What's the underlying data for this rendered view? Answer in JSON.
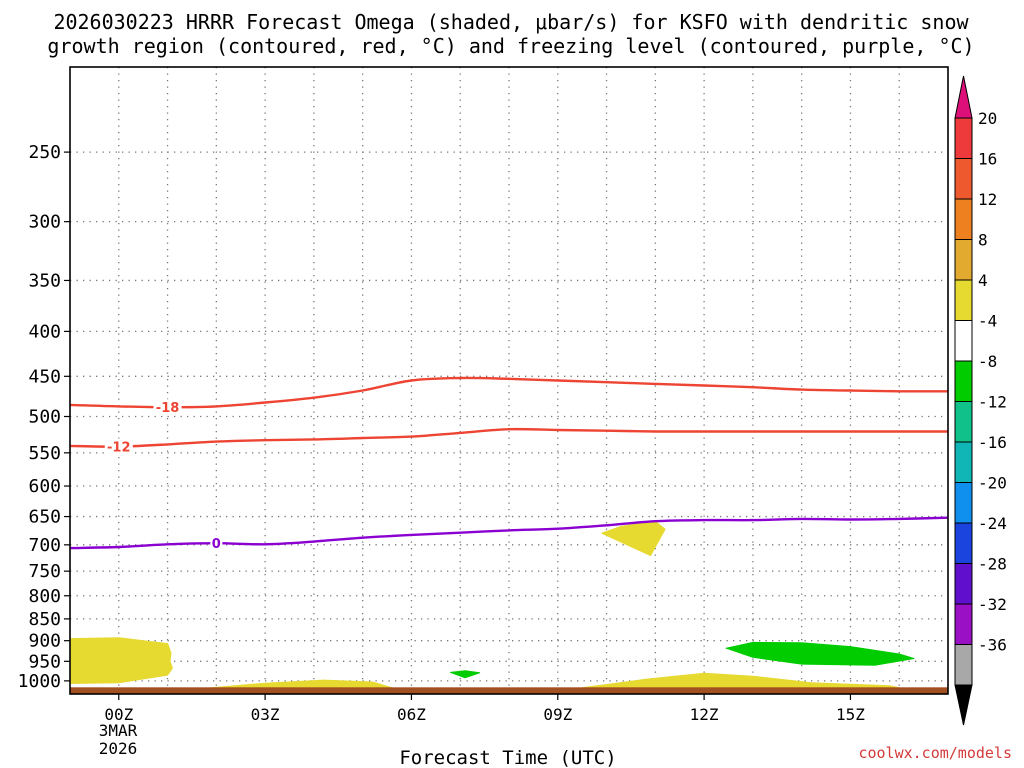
{
  "chart_data": {
    "type": "time-height-contour",
    "title_line1": "2026030223 HRRR Forecast Omega (shaded, μbar/s) for KSFO with dendritic snow",
    "title_line2": "growth region (contoured, red, °C) and freezing level (contoured, purple, °C)",
    "xlabel": "Forecast Time (UTC)",
    "watermark": "coolwx.com/models",
    "x_ticks": [
      {
        "hour": 0,
        "label": "00Z"
      },
      {
        "hour": 3,
        "label": "03Z"
      },
      {
        "hour": 6,
        "label": "06Z"
      },
      {
        "hour": 9,
        "label": "09Z"
      },
      {
        "hour": 12,
        "label": "12Z"
      },
      {
        "hour": 15,
        "label": "15Z"
      }
    ],
    "date_label": [
      "3MAR",
      "2026"
    ],
    "xlim": [
      -1,
      17
    ],
    "y_levels": [
      250,
      300,
      350,
      400,
      450,
      500,
      550,
      600,
      650,
      700,
      750,
      800,
      850,
      900,
      950,
      1000
    ],
    "ylim_hPa": [
      200,
      1035
    ],
    "contours": [
      {
        "name": "-18C dendritic",
        "color": "#ee4433",
        "label": "-18",
        "label_at": [
          1.0,
          488
        ],
        "points": [
          [
            -1,
            485
          ],
          [
            0,
            487
          ],
          [
            1,
            488
          ],
          [
            2,
            487
          ],
          [
            3,
            482
          ],
          [
            4,
            476
          ],
          [
            5,
            467
          ],
          [
            6,
            455
          ],
          [
            7,
            452
          ],
          [
            8,
            453
          ],
          [
            9,
            455
          ],
          [
            10,
            457
          ],
          [
            11,
            459
          ],
          [
            12,
            461
          ],
          [
            13,
            463
          ],
          [
            14,
            466
          ],
          [
            15,
            467
          ],
          [
            16,
            468
          ],
          [
            17,
            468
          ]
        ]
      },
      {
        "name": "-12C dendritic",
        "color": "#ee4433",
        "label": "-12",
        "label_at": [
          0.0,
          541
        ],
        "points": [
          [
            -1,
            540
          ],
          [
            0,
            541
          ],
          [
            1,
            538
          ],
          [
            2,
            534
          ],
          [
            3,
            532
          ],
          [
            4,
            531
          ],
          [
            5,
            529
          ],
          [
            6,
            527
          ],
          [
            7,
            522
          ],
          [
            8,
            517
          ],
          [
            9,
            518
          ],
          [
            10,
            519
          ],
          [
            11,
            520
          ],
          [
            12,
            520
          ],
          [
            13,
            520
          ],
          [
            14,
            520
          ],
          [
            15,
            520
          ],
          [
            16,
            520
          ],
          [
            17,
            520
          ]
        ]
      },
      {
        "name": "0C freezing level",
        "color": "#8a00d0",
        "label": "0",
        "label_at": [
          2.0,
          697
        ],
        "points": [
          [
            -1,
            706
          ],
          [
            0,
            704
          ],
          [
            1,
            699
          ],
          [
            2,
            697
          ],
          [
            3,
            699
          ],
          [
            4,
            694
          ],
          [
            5,
            687
          ],
          [
            6,
            682
          ],
          [
            7,
            678
          ],
          [
            8,
            674
          ],
          [
            9,
            671
          ],
          [
            10,
            665
          ],
          [
            11,
            658
          ],
          [
            12,
            656
          ],
          [
            13,
            656
          ],
          [
            14,
            654
          ],
          [
            15,
            655
          ],
          [
            16,
            654
          ],
          [
            17,
            652
          ]
        ]
      }
    ],
    "shaded_regions": [
      {
        "color": "#e6d930",
        "points": [
          [
            -1,
            895
          ],
          [
            0,
            893
          ],
          [
            1,
            907
          ],
          [
            1.07,
            930
          ],
          [
            1.05,
            950
          ],
          [
            1.1,
            967
          ],
          [
            1,
            985
          ],
          [
            0,
            1005
          ],
          [
            -1,
            1007
          ]
        ]
      },
      {
        "color": "#e6d930",
        "points": [
          [
            1.9,
            1018
          ],
          [
            3,
            1006
          ],
          [
            4.2,
            998
          ],
          [
            5.2,
            1003
          ],
          [
            5.6,
            1018
          ]
        ]
      },
      {
        "color": "#e6d930",
        "points": [
          [
            10.3,
            667
          ],
          [
            11,
            658
          ],
          [
            11.2,
            672
          ],
          [
            10.9,
            720
          ],
          [
            9.9,
            679
          ]
        ]
      },
      {
        "color": "#e6d930",
        "points": [
          [
            9.5,
            1018
          ],
          [
            10.8,
            996
          ],
          [
            12,
            980
          ],
          [
            13,
            988
          ],
          [
            14.2,
            1005
          ],
          [
            15.8,
            1013
          ],
          [
            16,
            1018
          ]
        ]
      },
      {
        "color": "#00cc00",
        "points": [
          [
            7.1,
            974
          ],
          [
            6.8,
            978
          ],
          [
            7.1,
            992
          ],
          [
            7.4,
            979
          ]
        ]
      },
      {
        "color": "#00cc00",
        "points": [
          [
            12.45,
            918
          ],
          [
            13,
            904
          ],
          [
            14,
            905
          ],
          [
            15,
            914
          ],
          [
            16,
            932
          ],
          [
            16.3,
            943
          ],
          [
            15.5,
            960
          ],
          [
            14,
            957
          ],
          [
            13,
            940
          ]
        ]
      }
    ],
    "ground": {
      "color": "#a24f22",
      "from_hPa": 1017
    },
    "colorbar": {
      "top_arrow": "#dd107a",
      "bottom_arrow": "#000000",
      "bins": [
        {
          "label": "20",
          "color": "#ee3a3a"
        },
        {
          "label": "16",
          "color": "#ee5a2e"
        },
        {
          "label": "12",
          "color": "#ee8020"
        },
        {
          "label": "8",
          "color": "#e3aa30"
        },
        {
          "label": "4",
          "color": "#e6d930"
        },
        {
          "label": "-4",
          "color": "#ffffff"
        },
        {
          "label": "-8",
          "color": "#00cc00"
        },
        {
          "label": "-12",
          "color": "#10c28a"
        },
        {
          "label": "-16",
          "color": "#10b6b6"
        },
        {
          "label": "-20",
          "color": "#1090ee"
        },
        {
          "label": "-24",
          "color": "#1a44dd"
        },
        {
          "label": "-28",
          "color": "#6010cc"
        },
        {
          "label": "-32",
          "color": "#9a10c4"
        },
        {
          "label": "-36",
          "color": "#a8a8a8"
        }
      ]
    }
  }
}
